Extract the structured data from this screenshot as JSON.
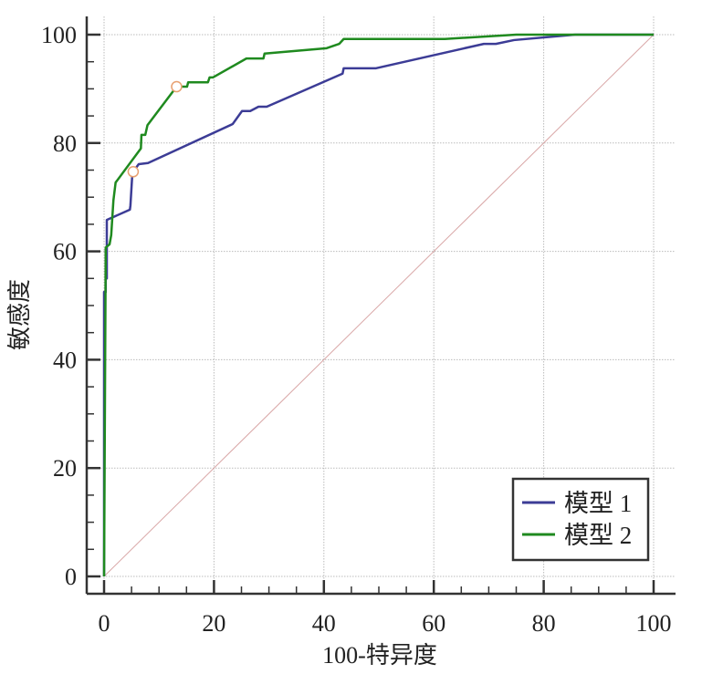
{
  "chart_data": {
    "type": "line",
    "title": "",
    "xlabel": "100-特异度",
    "ylabel": "敏感度",
    "xlim": [
      0,
      100
    ],
    "ylim": [
      0,
      100
    ],
    "xticks": [
      "0",
      "20",
      "40",
      "60",
      "80",
      "100"
    ],
    "yticks": [
      "0",
      "20",
      "40",
      "60",
      "80",
      "100"
    ],
    "grid": true,
    "legend": "bottom-right",
    "reference_line": {
      "x": [
        0,
        100
      ],
      "y": [
        0,
        100
      ],
      "color": "#d9a7a7"
    },
    "series": [
      {
        "name": "模型 1",
        "color": "#3c3c96",
        "x": [
          0,
          0,
          0.3,
          0.3,
          0.5,
          0.5,
          4.7,
          4.8,
          5.1,
          5.3,
          6.3,
          8,
          23.4,
          25.1,
          26.6,
          28.1,
          29.6,
          43.4,
          43.6,
          49.5,
          69.1,
          71.3,
          74.6,
          85.7,
          100
        ],
        "y": [
          0,
          52.5,
          52.5,
          55,
          55,
          65.8,
          67.7,
          68.5,
          73.6,
          74.7,
          76.1,
          76.3,
          83.5,
          85.9,
          85.9,
          86.7,
          86.7,
          92.8,
          93.8,
          93.8,
          98.3,
          98.3,
          99,
          100,
          100
        ],
        "marker": {
          "x": 5.3,
          "y": 74.7
        }
      },
      {
        "name": "模型 2",
        "color": "#1f8a1f",
        "x": [
          0,
          0.3,
          1,
          1.3,
          1.7,
          2.1,
          6.7,
          6.8,
          7.5,
          7.9,
          13.2,
          15.1,
          15.3,
          18.9,
          19.2,
          19.8,
          25.9,
          29,
          29.2,
          40.5,
          42.8,
          43.6,
          62,
          75,
          100
        ],
        "y": [
          0,
          60.7,
          61.3,
          63,
          69.4,
          72.7,
          79,
          81.5,
          81.5,
          83.3,
          90.4,
          90.4,
          91.2,
          91.2,
          92.1,
          92.1,
          95.6,
          95.6,
          96.5,
          97.5,
          98.3,
          99.2,
          99.2,
          100,
          100
        ],
        "marker": {
          "x": 13.2,
          "y": 90.4
        }
      }
    ],
    "marker_color": "#e8a070"
  }
}
